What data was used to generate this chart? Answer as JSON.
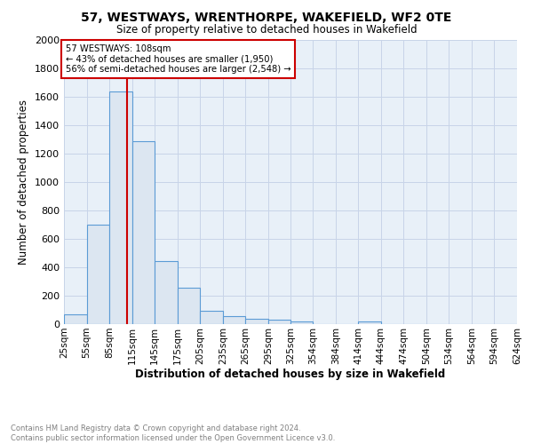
{
  "title": "57, WESTWAYS, WRENTHORPE, WAKEFIELD, WF2 0TE",
  "subtitle": "Size of property relative to detached houses in Wakefield",
  "xlabel": "Distribution of detached houses by size in Wakefield",
  "ylabel": "Number of detached properties",
  "footnote1": "Contains HM Land Registry data © Crown copyright and database right 2024.",
  "footnote2": "Contains public sector information licensed under the Open Government Licence v3.0.",
  "annotation_line1": "57 WESTWAYS: 108sqm",
  "annotation_line2": "← 43% of detached houses are smaller (1,950)",
  "annotation_line3": "56% of semi-detached houses are larger (2,548) →",
  "bar_edge_color": "#5b9bd5",
  "bar_face_color": "#dce6f1",
  "grid_color": "#c8d4e8",
  "background_color": "#e8f0f8",
  "vline_color": "#cc0000",
  "vline_x": 108,
  "bin_edges": [
    25,
    55,
    85,
    115,
    145,
    175,
    205,
    235,
    265,
    295,
    325,
    354,
    384,
    414,
    444,
    474,
    504,
    534,
    564,
    594,
    624
  ],
  "bar_heights": [
    70,
    700,
    1640,
    1290,
    445,
    255,
    95,
    55,
    35,
    30,
    20,
    0,
    0,
    20,
    0,
    0,
    0,
    0,
    0,
    0
  ],
  "ylim": [
    0,
    2000
  ],
  "yticks": [
    0,
    200,
    400,
    600,
    800,
    1000,
    1200,
    1400,
    1600,
    1800,
    2000
  ],
  "tick_labels": [
    "25sqm",
    "55sqm",
    "85sqm",
    "115sqm",
    "145sqm",
    "175sqm",
    "205sqm",
    "235sqm",
    "265sqm",
    "295sqm",
    "325sqm",
    "354sqm",
    "384sqm",
    "414sqm",
    "444sqm",
    "474sqm",
    "504sqm",
    "534sqm",
    "564sqm",
    "594sqm",
    "624sqm"
  ]
}
